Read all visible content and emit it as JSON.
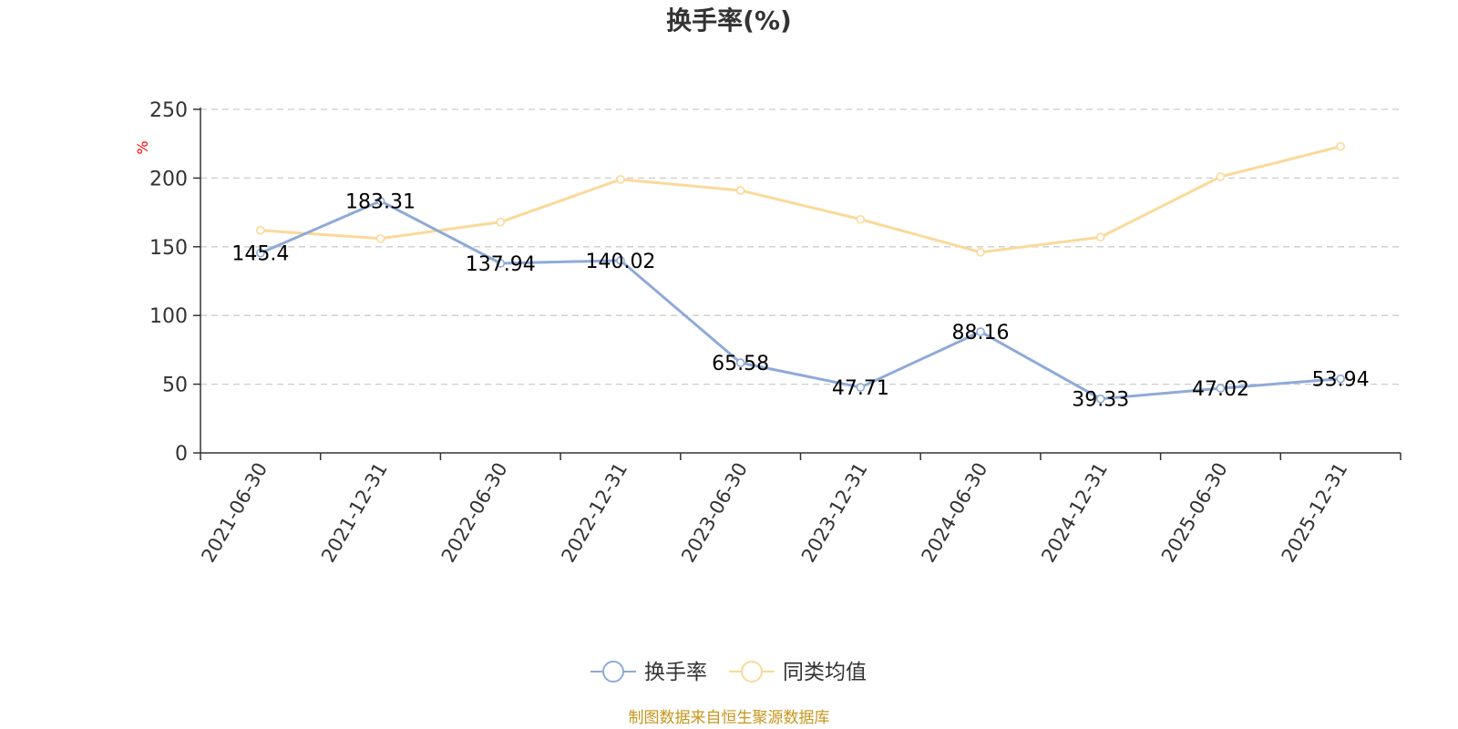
{
  "chart_data": {
    "type": "line",
    "title": "换手率(%)",
    "ylabel": "%",
    "xlabel": "",
    "ylim": [
      0,
      250
    ],
    "yticks": [
      0,
      50,
      100,
      150,
      200,
      250
    ],
    "grid": true,
    "categories": [
      "2021-06-30",
      "2021-12-31",
      "2022-06-30",
      "2022-12-31",
      "2023-06-30",
      "2023-12-31",
      "2024-06-30",
      "2024-12-31",
      "2025-06-30",
      "2025-12-31"
    ],
    "series": [
      {
        "name": "换手率",
        "color": "#8eaad8",
        "values": [
          145.4,
          183.31,
          137.94,
          140.02,
          65.58,
          47.71,
          88.16,
          39.33,
          47.02,
          53.94
        ],
        "labels": [
          "145.4",
          "183.31",
          "137.94",
          "140.02",
          "65.58",
          "47.71",
          "88.16",
          "39.33",
          "47.02",
          "53.94"
        ],
        "show_labels": true
      },
      {
        "name": "同类均值",
        "color": "#fbd99a",
        "values": [
          162,
          156,
          168,
          199,
          191,
          170,
          146,
          157,
          201,
          223
        ],
        "show_labels": false
      }
    ],
    "legend_position": "bottom-center",
    "unit_color": "#ff0000",
    "source": "制图数据来自恒生聚源数据库",
    "source_color": "#c8961c"
  }
}
